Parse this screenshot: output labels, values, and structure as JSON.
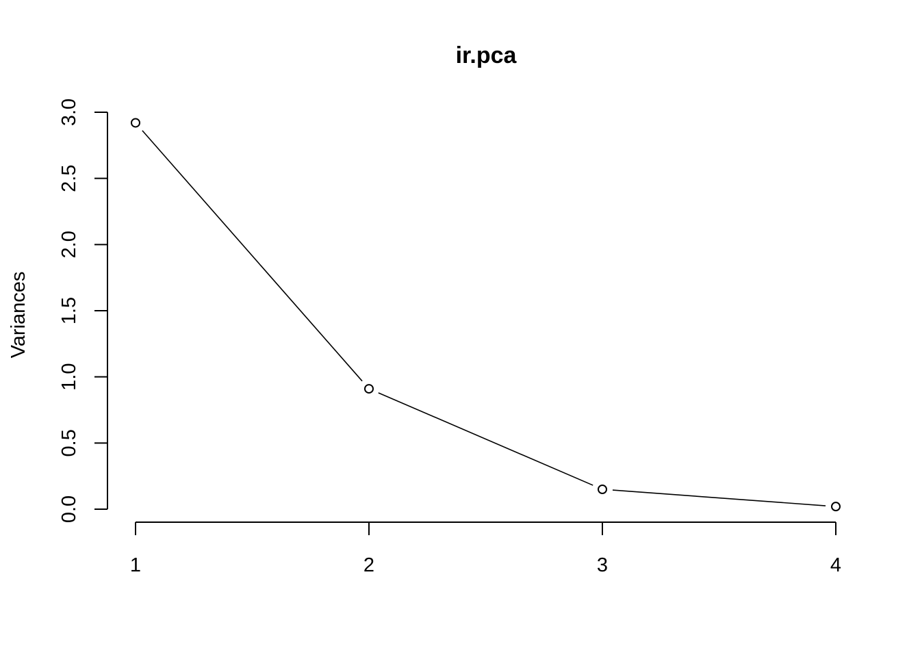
{
  "chart_data": {
    "type": "line",
    "title": "ir.pca",
    "xlabel": "",
    "ylabel": "Variances",
    "categories": [
      "1",
      "2",
      "3",
      "4"
    ],
    "series": [
      {
        "values": [
          2.92,
          0.91,
          0.15,
          0.02
        ]
      }
    ],
    "xlim": [
      1,
      4
    ],
    "ylim": [
      0,
      3
    ],
    "y_ticks": [
      "0.0",
      "0.5",
      "1.0",
      "1.5",
      "2.0",
      "2.5",
      "3.0"
    ],
    "x_ticks": [
      "1",
      "2",
      "3",
      "4"
    ],
    "grid": false,
    "marker": "open-circle",
    "line_color": "#000000",
    "background": "#ffffff"
  }
}
